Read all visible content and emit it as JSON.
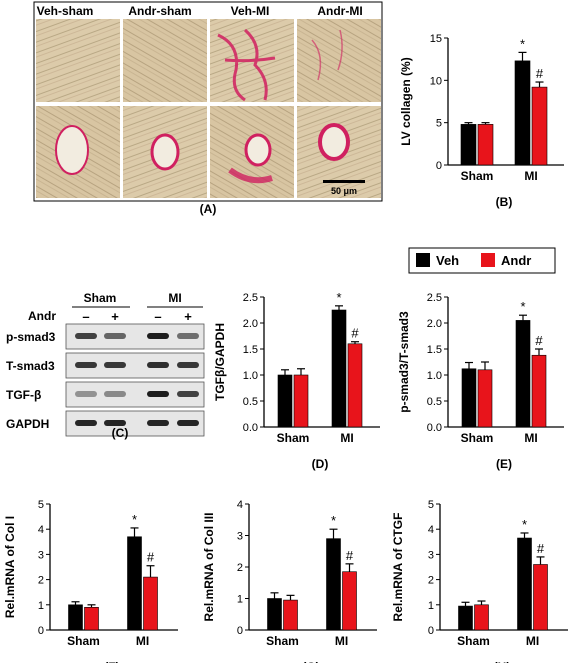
{
  "colors": {
    "veh": "#000000",
    "andr": "#e8141b",
    "stain": "#d02060",
    "tissue": "#d8c8a8"
  },
  "histology": {
    "column_labels": [
      "Veh-sham",
      "Andr-sham",
      "Veh-MI",
      "Andr-MI"
    ],
    "scale_bar": "50 μm",
    "panel_label": "(A)"
  },
  "legend": {
    "items": [
      {
        "label": "Veh",
        "color": "#000000"
      },
      {
        "label": "Andr",
        "color": "#e8141b"
      }
    ]
  },
  "western": {
    "group_labels": [
      "Sham",
      "MI"
    ],
    "row_header": "Andr",
    "lane_signs": [
      "–",
      "+",
      "–",
      "+"
    ],
    "bands": [
      {
        "label": "p-smad3",
        "intensity": [
          0.75,
          0.55,
          0.95,
          0.5
        ]
      },
      {
        "label": "T-smad3",
        "intensity": [
          0.8,
          0.8,
          0.85,
          0.8
        ]
      },
      {
        "label": "TGF-β",
        "intensity": [
          0.3,
          0.35,
          0.95,
          0.75
        ]
      },
      {
        "label": "GAPDH",
        "intensity": [
          0.9,
          0.9,
          0.9,
          0.9
        ]
      }
    ],
    "panel_label": "(C)"
  },
  "chart_data": [
    {
      "id": "B",
      "type": "bar",
      "panel_label": "(B)",
      "ylabel": "LV collagen (%)",
      "categories": [
        "Sham",
        "MI"
      ],
      "ylim": [
        0,
        15
      ],
      "yticks": [
        0,
        5,
        10,
        15
      ],
      "series": [
        {
          "name": "Veh",
          "values": [
            4.8,
            12.3
          ],
          "errors": [
            0.2,
            1.0
          ]
        },
        {
          "name": "Andr",
          "values": [
            4.8,
            9.2
          ],
          "errors": [
            0.2,
            0.6
          ]
        }
      ],
      "annotations": [
        {
          "category": "MI",
          "series": "Veh",
          "text": "*"
        },
        {
          "category": "MI",
          "series": "Andr",
          "text": "#"
        }
      ]
    },
    {
      "id": "D",
      "type": "bar",
      "panel_label": "(D)",
      "ylabel": "TGFβ/GAPDH",
      "categories": [
        "Sham",
        "MI"
      ],
      "ylim": [
        0,
        2.5
      ],
      "yticks": [
        0.0,
        0.5,
        1.0,
        1.5,
        2.0,
        2.5
      ],
      "series": [
        {
          "name": "Veh",
          "values": [
            1.0,
            2.25
          ],
          "errors": [
            0.1,
            0.08
          ]
        },
        {
          "name": "Andr",
          "values": [
            1.0,
            1.6
          ],
          "errors": [
            0.12,
            0.04
          ]
        }
      ],
      "annotations": [
        {
          "category": "MI",
          "series": "Veh",
          "text": "*"
        },
        {
          "category": "MI",
          "series": "Andr",
          "text": "#"
        }
      ]
    },
    {
      "id": "E",
      "type": "bar",
      "panel_label": "(E)",
      "ylabel": "p-smad3/T-smad3",
      "categories": [
        "Sham",
        "MI"
      ],
      "ylim": [
        0,
        2.5
      ],
      "yticks": [
        0.0,
        0.5,
        1.0,
        1.5,
        2.0,
        2.5
      ],
      "series": [
        {
          "name": "Veh",
          "values": [
            1.12,
            2.05
          ],
          "errors": [
            0.12,
            0.1
          ]
        },
        {
          "name": "Andr",
          "values": [
            1.1,
            1.38
          ],
          "errors": [
            0.15,
            0.12
          ]
        }
      ],
      "annotations": [
        {
          "category": "MI",
          "series": "Veh",
          "text": "*"
        },
        {
          "category": "MI",
          "series": "Andr",
          "text": "#"
        }
      ]
    },
    {
      "id": "F",
      "type": "bar",
      "panel_label": "(F)",
      "ylabel": "Rel.mRNA of Col I",
      "categories": [
        "Sham",
        "MI"
      ],
      "ylim": [
        0,
        5
      ],
      "yticks": [
        0,
        1,
        2,
        3,
        4,
        5
      ],
      "series": [
        {
          "name": "Veh",
          "values": [
            1.0,
            3.7
          ],
          "errors": [
            0.12,
            0.35
          ]
        },
        {
          "name": "Andr",
          "values": [
            0.9,
            2.1
          ],
          "errors": [
            0.1,
            0.45
          ]
        }
      ],
      "annotations": [
        {
          "category": "MI",
          "series": "Veh",
          "text": "*"
        },
        {
          "category": "MI",
          "series": "Andr",
          "text": "#"
        }
      ]
    },
    {
      "id": "G",
      "type": "bar",
      "panel_label": "(G)",
      "ylabel": "Rel.mRNA of Col III",
      "categories": [
        "Sham",
        "MI"
      ],
      "ylim": [
        0,
        4
      ],
      "yticks": [
        0,
        1,
        2,
        3,
        4
      ],
      "series": [
        {
          "name": "Veh",
          "values": [
            1.0,
            2.9
          ],
          "errors": [
            0.18,
            0.3
          ]
        },
        {
          "name": "Andr",
          "values": [
            0.95,
            1.85
          ],
          "errors": [
            0.15,
            0.25
          ]
        }
      ],
      "annotations": [
        {
          "category": "MI",
          "series": "Veh",
          "text": "*"
        },
        {
          "category": "MI",
          "series": "Andr",
          "text": "#"
        }
      ]
    },
    {
      "id": "H",
      "type": "bar",
      "panel_label": "(H)",
      "ylabel": "Rel.mRNA of CTGF",
      "categories": [
        "Sham",
        "MI"
      ],
      "ylim": [
        0,
        5
      ],
      "yticks": [
        0,
        1,
        2,
        3,
        4,
        5
      ],
      "series": [
        {
          "name": "Veh",
          "values": [
            0.95,
            3.65
          ],
          "errors": [
            0.15,
            0.2
          ]
        },
        {
          "name": "Andr",
          "values": [
            1.0,
            2.6
          ],
          "errors": [
            0.15,
            0.3
          ]
        }
      ],
      "annotations": [
        {
          "category": "MI",
          "series": "Veh",
          "text": "*"
        },
        {
          "category": "MI",
          "series": "Andr",
          "text": "#"
        }
      ]
    }
  ]
}
